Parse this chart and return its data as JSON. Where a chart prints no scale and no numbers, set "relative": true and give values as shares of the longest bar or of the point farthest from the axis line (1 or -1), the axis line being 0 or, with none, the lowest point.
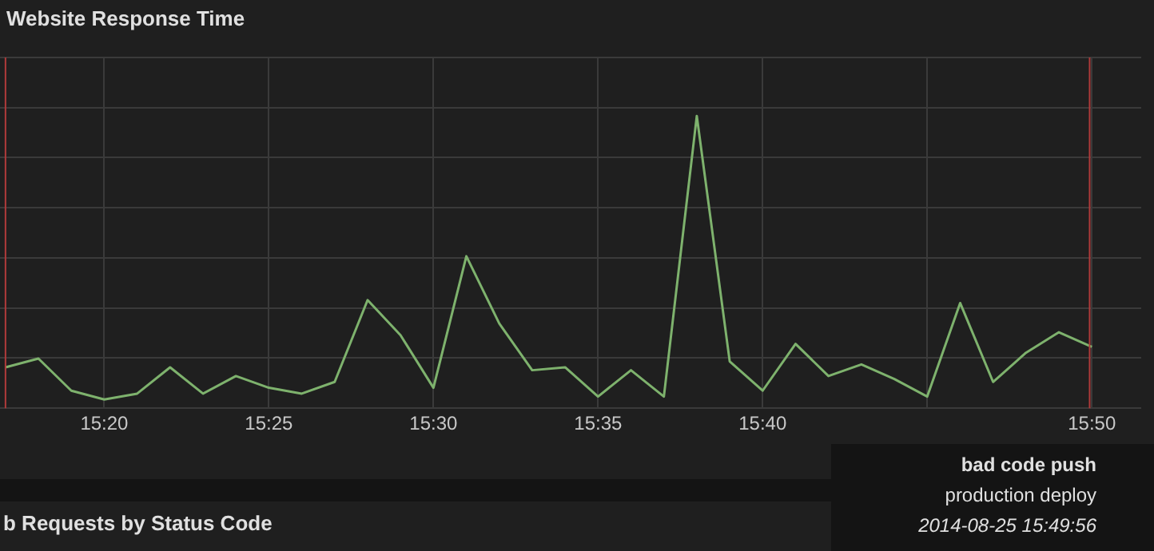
{
  "chart_data": {
    "type": "line",
    "title": "Website Response Time",
    "relative": true,
    "grid": true,
    "legend": false,
    "marker": "none",
    "line_style": "solid",
    "x": [
      "2014-08-25T15:17",
      "2014-08-25T15:18",
      "2014-08-25T15:19",
      "2014-08-25T15:20",
      "2014-08-25T15:21",
      "2014-08-25T15:22",
      "2014-08-25T15:23",
      "2014-08-25T15:24",
      "2014-08-25T15:25",
      "2014-08-25T15:26",
      "2014-08-25T15:27",
      "2014-08-25T15:28",
      "2014-08-25T15:29",
      "2014-08-25T15:30",
      "2014-08-25T15:31",
      "2014-08-25T15:32",
      "2014-08-25T15:33",
      "2014-08-25T15:34",
      "2014-08-25T15:35",
      "2014-08-25T15:36",
      "2014-08-25T15:37",
      "2014-08-25T15:38",
      "2014-08-25T15:39",
      "2014-08-25T15:40",
      "2014-08-25T15:41",
      "2014-08-25T15:42",
      "2014-08-25T15:43",
      "2014-08-25T15:44",
      "2014-08-25T15:45",
      "2014-08-25T15:46",
      "2014-08-25T15:47",
      "2014-08-25T15:48",
      "2014-08-25T15:49",
      "2014-08-25T15:50"
    ],
    "series": [
      {
        "color": "#7eb26d",
        "values": [
          0.14,
          0.17,
          0.06,
          0.03,
          0.05,
          0.14,
          0.05,
          0.11,
          0.07,
          0.05,
          0.09,
          0.37,
          0.25,
          0.07,
          0.52,
          0.29,
          0.13,
          0.14,
          0.04,
          0.13,
          0.04,
          1,
          0.16,
          0.06,
          0.22,
          0.11,
          0.15,
          0.1,
          0.04,
          0.36,
          0.09,
          0.19,
          0.26,
          0.21
        ]
      }
    ],
    "xlim": [
      "2014-08-25T15:16:50",
      "2014-08-25T15:51:30"
    ],
    "xticks": [
      {
        "value": "2014-08-25T15:20",
        "label": "15:20"
      },
      {
        "value": "2014-08-25T15:25",
        "label": "15:25"
      },
      {
        "value": "2014-08-25T15:30",
        "label": "15:30"
      },
      {
        "value": "2014-08-25T15:35",
        "label": "15:35"
      },
      {
        "value": "2014-08-25T15:40",
        "label": "15:40"
      },
      {
        "value": "2014-08-25T15:45",
        "label": null
      },
      {
        "value": "2014-08-25T15:50",
        "label": "15:50"
      }
    ],
    "ref_lines": [
      {
        "axis": "x",
        "value": "2014-08-25T15:17",
        "label": null,
        "color": "#b03a3a"
      },
      {
        "axis": "x",
        "value": "2014-08-25T15:49:56",
        "label": "bad code push",
        "color": "#b03a3a"
      }
    ],
    "annotations": [
      "production deploy",
      "2014-08-25 15:49:56",
      "b Requests by Status Code"
    ]
  }
}
